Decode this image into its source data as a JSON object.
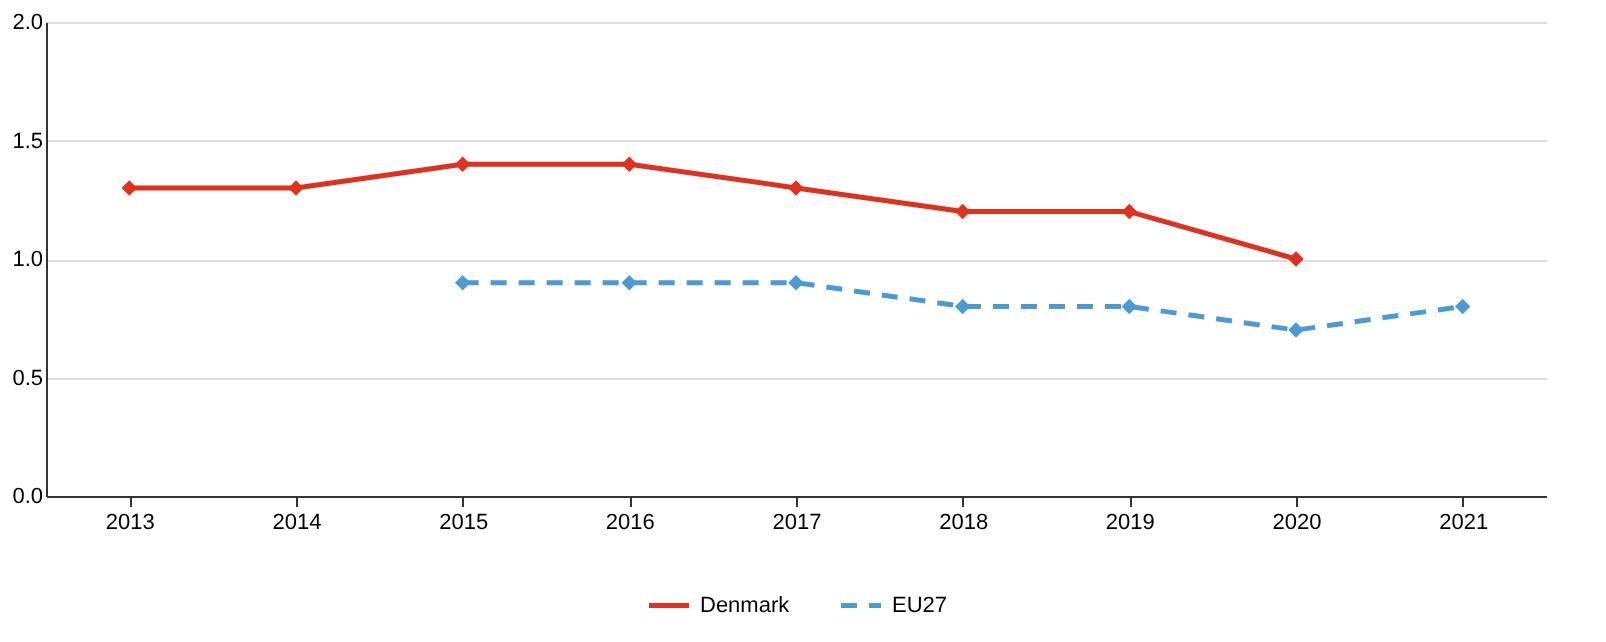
{
  "chart_data": {
    "type": "line",
    "categories": [
      "2013",
      "2014",
      "2015",
      "2016",
      "2017",
      "2018",
      "2019",
      "2020",
      "2021"
    ],
    "series": [
      {
        "name": "Denmark",
        "color": "#e0301e",
        "line_style": "solid",
        "values": [
          1.3,
          1.3,
          1.4,
          1.4,
          1.3,
          1.2,
          1.2,
          1.0,
          null
        ]
      },
      {
        "name": "EU27",
        "color": "#4a9ad4",
        "line_style": "dashed",
        "values": [
          null,
          null,
          0.9,
          0.9,
          0.9,
          0.8,
          0.8,
          0.7,
          0.8
        ]
      }
    ],
    "ylim": [
      0,
      2
    ],
    "yticks": [
      {
        "value": 0,
        "label": "0.0"
      },
      {
        "value": 0.5,
        "label": "0.5"
      },
      {
        "value": 1,
        "label": "1.0"
      },
      {
        "value": 1.5,
        "label": "1.5"
      },
      {
        "value": 2,
        "label": "2.0"
      }
    ],
    "grid": "y",
    "legend": "bottom",
    "marker": "diamond"
  }
}
